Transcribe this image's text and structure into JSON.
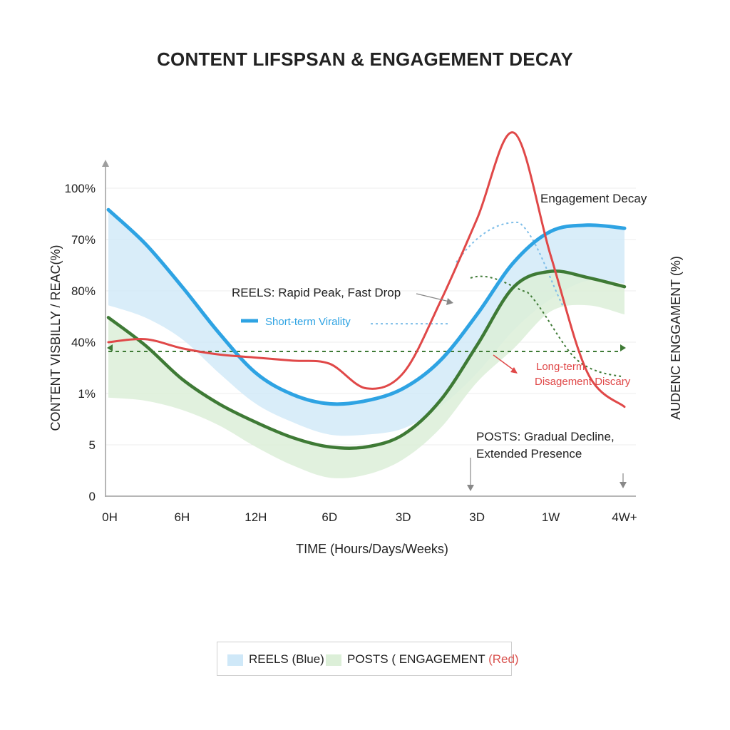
{
  "chart_data": {
    "type": "line",
    "title": "CONTENT LIFSPSAN & ENGAGEMENT DECAY",
    "xlabel": "TIME (Hours/Days/Weeks)",
    "ylabel": "CONTENT VISBILLY / REAC(%)",
    "y2label": "AUDENC ENGGAMENT (%)",
    "categories": [
      "0H",
      "6H",
      "12H",
      "6D",
      "3D",
      "3D",
      "1W",
      "4W+"
    ],
    "y_ticks": [
      "0",
      "5",
      "1%",
      "40%",
      "80%",
      "70%",
      "100%"
    ],
    "ylim": [
      0,
      100
    ],
    "grid": true,
    "series": [
      {
        "name": "REELS",
        "color": "#2ea3e3",
        "band_color": "#cfe8f8",
        "x": [
          0,
          0.5,
          1,
          1.5,
          2,
          2.5,
          3,
          3.5,
          4,
          4.5,
          5,
          5.5,
          6,
          6.5,
          7
        ],
        "values": [
          93,
          82,
          68,
          53,
          40,
          33,
          30,
          31,
          35,
          44,
          59,
          76,
          86,
          88,
          87
        ],
        "band_lower": [
          62,
          58,
          51,
          40,
          30,
          24,
          20,
          20,
          22,
          29,
          40,
          54,
          64,
          70,
          69
        ]
      },
      {
        "name": "POSTS",
        "color": "#3e7a35",
        "band_color": "#dcefd8",
        "x": [
          0,
          0.5,
          1,
          1.5,
          2,
          2.5,
          3,
          3.5,
          4,
          4.5,
          5,
          5.5,
          6,
          6.5,
          7
        ],
        "values": [
          58,
          49,
          38,
          30,
          24,
          19,
          16,
          16,
          20,
          31,
          49,
          68,
          73,
          71,
          68
        ],
        "band_lower": [
          32,
          31,
          28,
          23,
          16,
          10,
          6,
          7,
          12,
          22,
          37,
          48,
          60,
          62,
          59
        ]
      },
      {
        "name": "ENGAGEMENT",
        "color": "#e04848",
        "x": [
          0,
          0.5,
          1,
          1.5,
          2,
          2.5,
          3,
          3.5,
          4,
          4.5,
          5,
          5.5,
          6,
          6.5,
          7
        ],
        "values": [
          50,
          51,
          48,
          46,
          45,
          44,
          43,
          35,
          40,
          63,
          90,
          118,
          78,
          40,
          29
        ]
      }
    ],
    "dashed_lines": [
      {
        "color": "#3e7a35",
        "y": 47
      },
      {
        "color": "#7dbde8",
        "y": 56
      }
    ],
    "annotations": {
      "reels_peak": "REELS: Rapid Peak, Fast Drop",
      "short_term": "Short-term Virality",
      "engagement_decay": "Engagement Decay",
      "long_term_1": "Long-term",
      "long_term_2": "Disagement Discary",
      "posts_decline_1": "POSTS: Gradual Decline,",
      "posts_decline_2": "Extended Presence"
    },
    "legend": {
      "items": [
        {
          "label": "REELS (Blue)",
          "color": "#cfe8f8"
        },
        {
          "label": "POSTS ( ENGAGEMENT",
          "color": "#dcefd8"
        }
      ],
      "tail": "(Red)",
      "placement": "bottom-center"
    }
  }
}
